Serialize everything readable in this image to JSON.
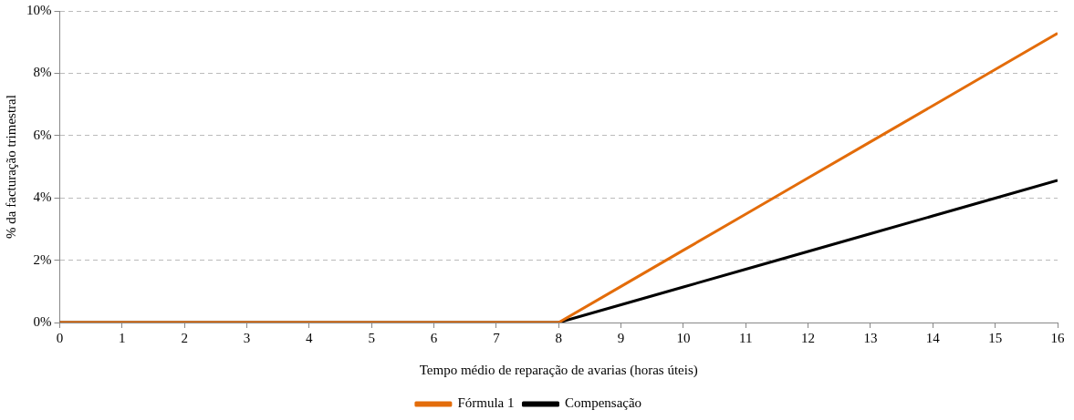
{
  "chart_data": {
    "type": "line",
    "xlabel": "Tempo médio de reparação de avarias (horas úteis)",
    "ylabel": "% da facturação trimestral",
    "x": [
      0,
      1,
      2,
      3,
      4,
      5,
      6,
      7,
      8,
      9,
      10,
      11,
      12,
      13,
      14,
      15,
      16
    ],
    "series": [
      {
        "name": "Compensação",
        "color": "#000000",
        "values": [
          0,
          0,
          0,
          0,
          0,
          0,
          0,
          0,
          0,
          0.57,
          1.14,
          1.71,
          2.28,
          2.85,
          3.42,
          3.99,
          4.56
        ]
      },
      {
        "name": "Fórmula 1",
        "color": "#e36c0a",
        "values": [
          0,
          0,
          0,
          0,
          0,
          0,
          0,
          0,
          0,
          1.16,
          2.32,
          3.48,
          4.64,
          5.8,
          6.96,
          8.12,
          9.28
        ]
      }
    ],
    "xlim": [
      0,
      16
    ],
    "xticks": [
      0,
      1,
      2,
      3,
      4,
      5,
      6,
      7,
      8,
      9,
      10,
      11,
      12,
      13,
      14,
      15,
      16
    ],
    "ylim": [
      0,
      10
    ],
    "yticks": [
      {
        "value": 0,
        "label": "0%"
      },
      {
        "value": 2,
        "label": "2%"
      },
      {
        "value": 4,
        "label": "4%"
      },
      {
        "value": 6,
        "label": "6%"
      },
      {
        "value": 8,
        "label": "8%"
      },
      {
        "value": 10,
        "label": "10%"
      }
    ],
    "grid": "y",
    "legend": "bottom",
    "marker": "none",
    "line_style": "solid"
  }
}
